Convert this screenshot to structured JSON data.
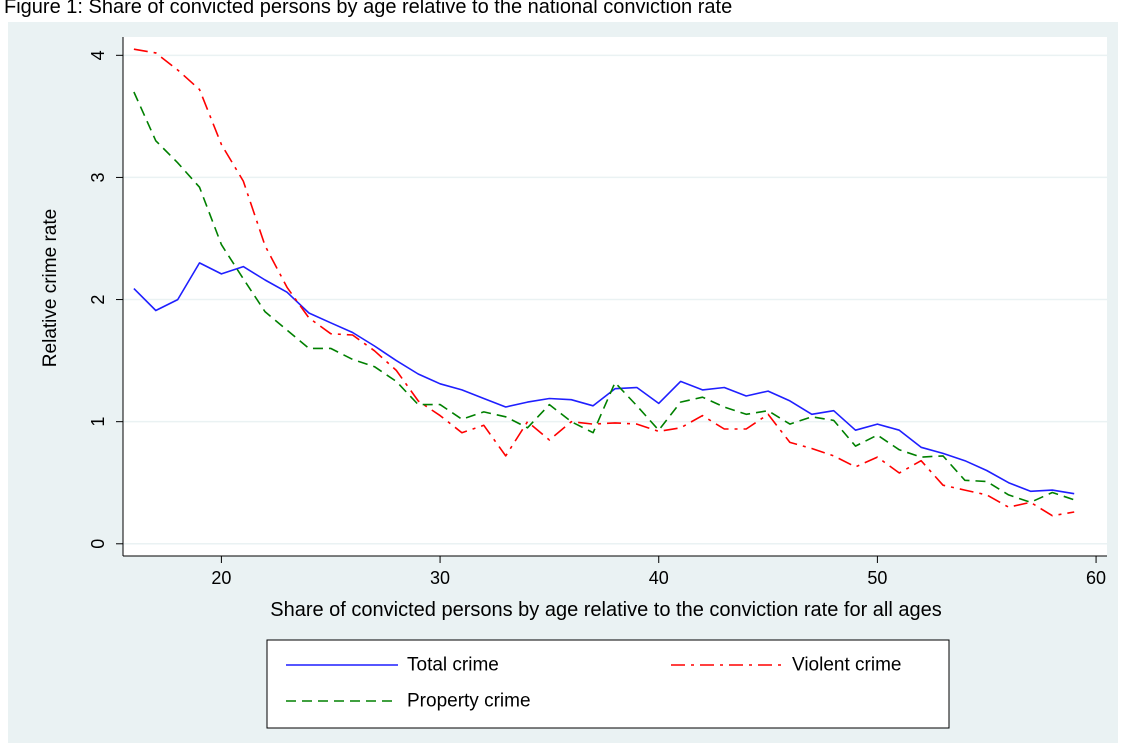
{
  "figure_title": "Figure 1: Share of convicted persons by age relative to the national conviction rate",
  "chart_data": {
    "type": "line",
    "xlabel": "Share of convicted persons by age relative to the conviction rate for all ages",
    "ylabel": "Relative crime rate",
    "xlim": [
      15.5,
      60.5
    ],
    "ylim": [
      -0.1,
      4.15
    ],
    "xticks": [
      20,
      30,
      40,
      50,
      60
    ],
    "yticks": [
      0,
      1,
      2,
      3,
      4
    ],
    "grid": true,
    "legend_position": "bottom",
    "x": [
      16,
      17,
      18,
      19,
      20,
      21,
      22,
      23,
      24,
      25,
      26,
      27,
      28,
      29,
      30,
      31,
      32,
      33,
      34,
      35,
      36,
      37,
      38,
      39,
      40,
      41,
      42,
      43,
      44,
      45,
      46,
      47,
      48,
      49,
      50,
      51,
      52,
      53,
      54,
      55,
      56,
      57,
      58,
      59
    ],
    "series": [
      {
        "name": "Total crime",
        "color": "#1f1fff",
        "dash": "solid",
        "values": [
          2.09,
          1.91,
          2.0,
          2.3,
          2.21,
          2.27,
          2.16,
          2.06,
          1.89,
          1.81,
          1.73,
          1.62,
          1.5,
          1.39,
          1.31,
          1.26,
          1.19,
          1.12,
          1.16,
          1.19,
          1.18,
          1.13,
          1.27,
          1.28,
          1.15,
          1.33,
          1.26,
          1.28,
          1.21,
          1.25,
          1.17,
          1.06,
          1.09,
          0.93,
          0.98,
          0.93,
          0.79,
          0.74,
          0.68,
          0.6,
          0.5,
          0.43,
          0.44,
          0.41
        ]
      },
      {
        "name": "Violent crime",
        "color": "#ff0000",
        "dash": "dashdot",
        "values": [
          4.05,
          4.02,
          3.88,
          3.72,
          3.27,
          2.97,
          2.44,
          2.1,
          1.85,
          1.72,
          1.71,
          1.58,
          1.42,
          1.17,
          1.05,
          0.91,
          0.97,
          0.72,
          1.0,
          0.85,
          1.0,
          0.98,
          0.99,
          0.98,
          0.92,
          0.95,
          1.05,
          0.94,
          0.94,
          1.06,
          0.83,
          0.78,
          0.72,
          0.63,
          0.71,
          0.58,
          0.68,
          0.48,
          0.44,
          0.4,
          0.3,
          0.34,
          0.23,
          0.26
        ]
      },
      {
        "name": "Property crime",
        "color": "#008000",
        "dash": "dash",
        "values": [
          3.7,
          3.3,
          3.12,
          2.92,
          2.45,
          2.17,
          1.9,
          1.75,
          1.6,
          1.6,
          1.51,
          1.45,
          1.33,
          1.14,
          1.14,
          1.02,
          1.08,
          1.04,
          0.95,
          1.14,
          1.0,
          0.91,
          1.32,
          1.13,
          0.93,
          1.16,
          1.2,
          1.12,
          1.06,
          1.09,
          0.98,
          1.04,
          1.01,
          0.8,
          0.89,
          0.77,
          0.71,
          0.72,
          0.52,
          0.51,
          0.4,
          0.34,
          0.42,
          0.36
        ]
      }
    ]
  }
}
